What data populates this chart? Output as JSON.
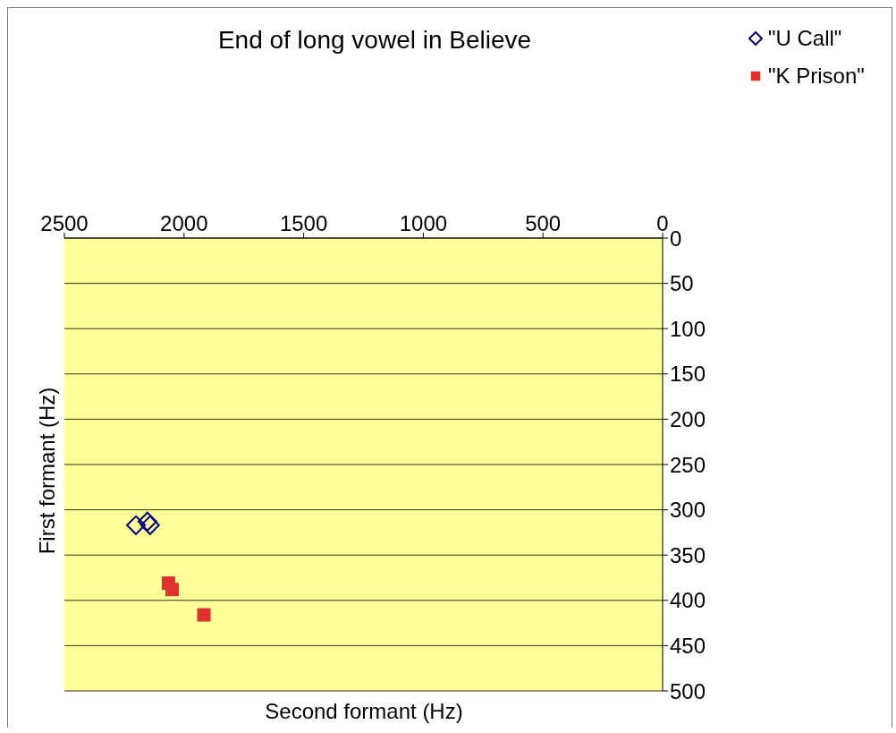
{
  "chart_data": {
    "type": "scatter",
    "title": "End of long vowel in Believe",
    "xlabel": "Second formant (Hz)",
    "ylabel": "First formant (Hz)",
    "xlim": [
      2500,
      0
    ],
    "xticks": [
      2500,
      2000,
      1500,
      1000,
      500,
      0
    ],
    "ylim": [
      500,
      0
    ],
    "yticks": [
      0,
      50,
      100,
      150,
      200,
      250,
      300,
      350,
      400,
      450,
      500
    ],
    "grid": "y",
    "legend": "top right",
    "series": [
      {
        "name": "\"U Call\"",
        "color": "#000080",
        "marker": "diamond",
        "x": [
          2201,
          2153,
          2142
        ],
        "values": [
          317,
          313,
          317
        ]
      },
      {
        "name": "\"K Prison\"",
        "color": "#e03030",
        "marker": "square",
        "x": [
          2065,
          2050,
          1917
        ],
        "values": [
          381,
          388,
          416
        ]
      }
    ]
  }
}
